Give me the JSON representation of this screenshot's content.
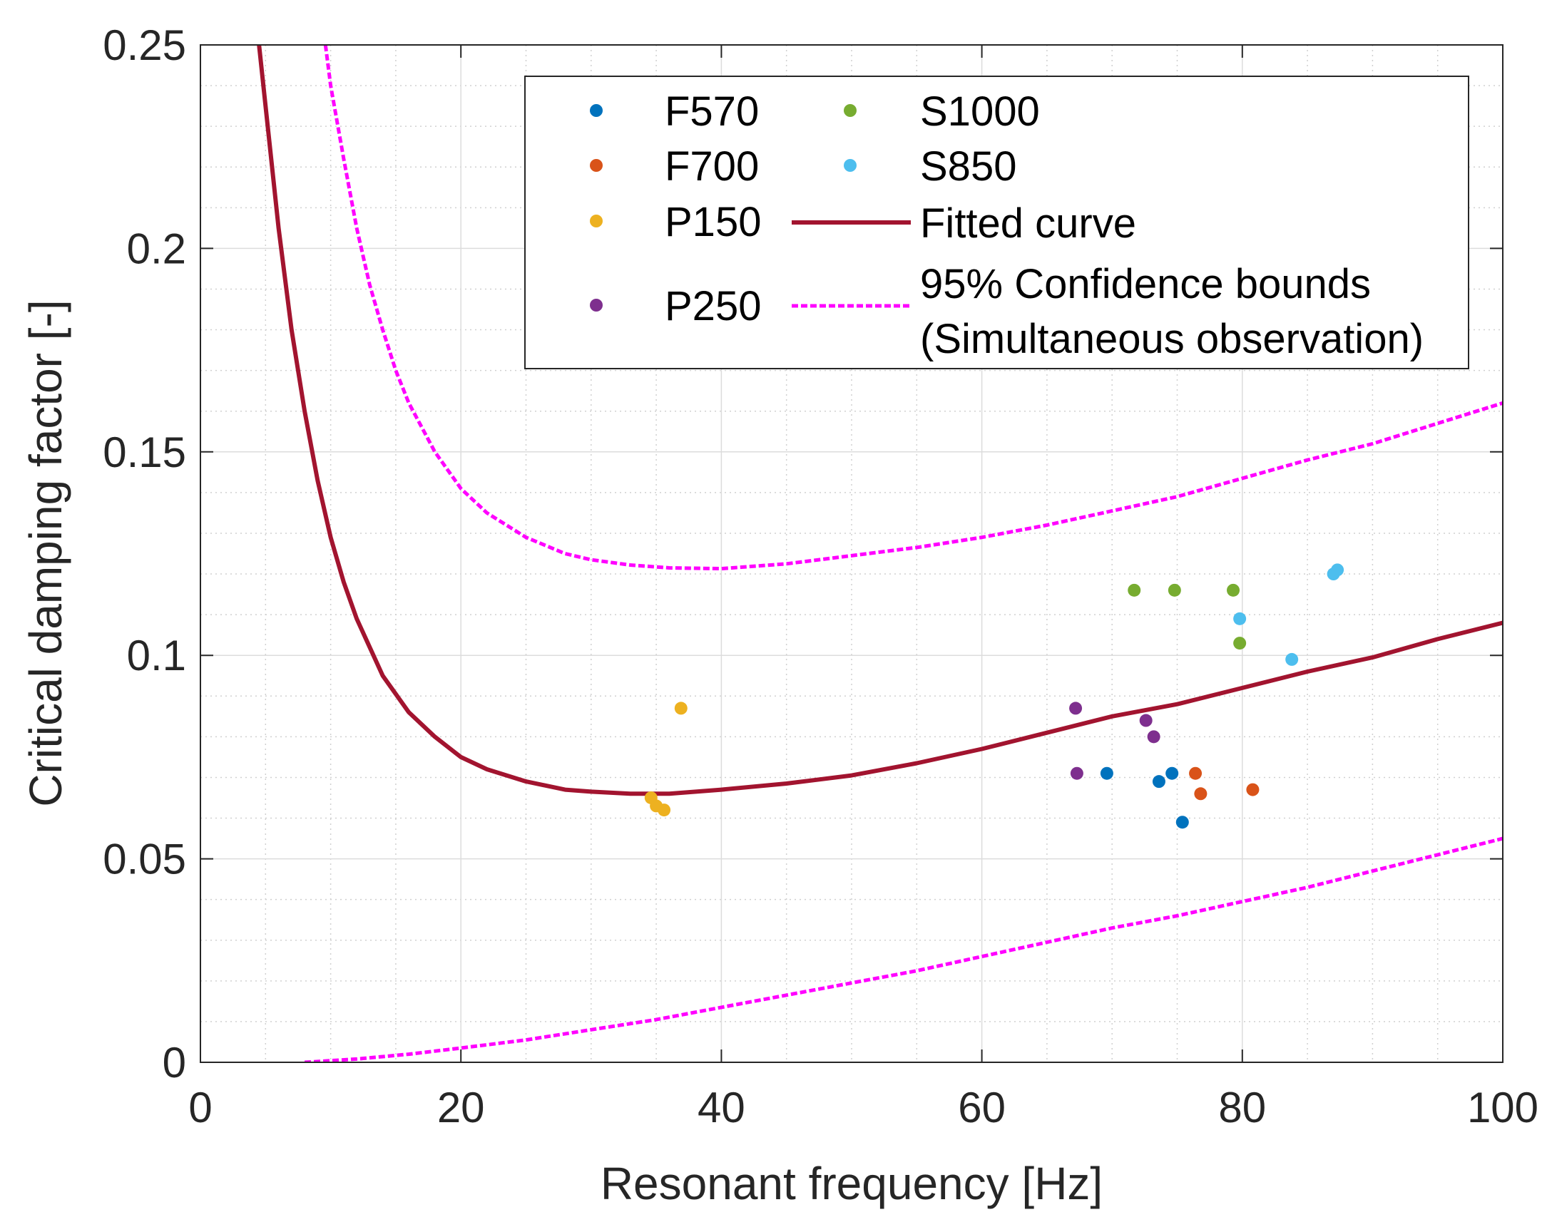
{
  "chart_data": {
    "type": "scatter",
    "xlabel": "Resonant frequency [Hz]",
    "ylabel": "Critical damping factor [-]",
    "xlim": [
      0,
      100
    ],
    "ylim": [
      0,
      0.25
    ],
    "x_ticks": [
      0,
      20,
      40,
      60,
      80,
      100
    ],
    "x_tick_labels": [
      "0",
      "20",
      "40",
      "60",
      "80",
      "100"
    ],
    "y_ticks": [
      0,
      0.05,
      0.1,
      0.15,
      0.2,
      0.25
    ],
    "y_tick_labels": [
      "0",
      "0.05",
      "0.1",
      "0.15",
      "0.2",
      "0.25"
    ],
    "grid": true,
    "minor_grid": true,
    "legend_position": "top-right",
    "series": [
      {
        "name": "F570",
        "color": "#0072BD",
        "points": [
          [
            69.6,
            0.071
          ],
          [
            73.6,
            0.069
          ],
          [
            74.6,
            0.071
          ],
          [
            75.4,
            0.059
          ]
        ]
      },
      {
        "name": "F700",
        "color": "#D95319",
        "points": [
          [
            76.4,
            0.071
          ],
          [
            76.8,
            0.066
          ],
          [
            80.8,
            0.067
          ]
        ]
      },
      {
        "name": "P150",
        "color": "#EDB120",
        "points": [
          [
            34.6,
            0.065
          ],
          [
            35.0,
            0.063
          ],
          [
            35.6,
            0.062
          ],
          [
            36.9,
            0.087
          ]
        ]
      },
      {
        "name": "P250",
        "color": "#7E2F8E",
        "points": [
          [
            67.2,
            0.087
          ],
          [
            67.3,
            0.071
          ],
          [
            72.6,
            0.084
          ],
          [
            73.2,
            0.08
          ]
        ]
      },
      {
        "name": "S1000",
        "color": "#77AC30",
        "points": [
          [
            71.7,
            0.116
          ],
          [
            74.8,
            0.116
          ],
          [
            79.3,
            0.116
          ],
          [
            79.8,
            0.103
          ]
        ]
      },
      {
        "name": "S850",
        "color": "#4DBEEE",
        "points": [
          [
            79.8,
            0.109
          ],
          [
            83.8,
            0.099
          ],
          [
            87.0,
            0.12
          ],
          [
            87.3,
            0.121
          ]
        ]
      }
    ],
    "lines": [
      {
        "name": "Fitted curve",
        "color": "#A2142F",
        "style": "solid",
        "points": [
          [
            4.5,
            0.25
          ],
          [
            5,
            0.235
          ],
          [
            6,
            0.205
          ],
          [
            7,
            0.18
          ],
          [
            8,
            0.16
          ],
          [
            9,
            0.143
          ],
          [
            10,
            0.129
          ],
          [
            11,
            0.118
          ],
          [
            12,
            0.109
          ],
          [
            14,
            0.095
          ],
          [
            16,
            0.086
          ],
          [
            18,
            0.08
          ],
          [
            20,
            0.075
          ],
          [
            22,
            0.072
          ],
          [
            25,
            0.069
          ],
          [
            28,
            0.067
          ],
          [
            30,
            0.0665
          ],
          [
            33,
            0.066
          ],
          [
            36,
            0.066
          ],
          [
            40,
            0.067
          ],
          [
            45,
            0.0685
          ],
          [
            50,
            0.0705
          ],
          [
            55,
            0.0735
          ],
          [
            60,
            0.077
          ],
          [
            65,
            0.081
          ],
          [
            70,
            0.085
          ],
          [
            75,
            0.088
          ],
          [
            80,
            0.092
          ],
          [
            85,
            0.096
          ],
          [
            90,
            0.0995
          ],
          [
            95,
            0.104
          ],
          [
            100,
            0.108
          ]
        ]
      },
      {
        "name": "95% Confidence bounds",
        "name_line2": "(Simultaneous observation)",
        "color": "#FF00FF",
        "style": "dashed",
        "points": [
          [
            9.6,
            0.25
          ],
          [
            10,
            0.24
          ],
          [
            11,
            0.222
          ],
          [
            12,
            0.205
          ],
          [
            13,
            0.191
          ],
          [
            14,
            0.18
          ],
          [
            15,
            0.17
          ],
          [
            16,
            0.162
          ],
          [
            18,
            0.15
          ],
          [
            20,
            0.141
          ],
          [
            22,
            0.135
          ],
          [
            25,
            0.129
          ],
          [
            28,
            0.125
          ],
          [
            30,
            0.1235
          ],
          [
            33,
            0.1222
          ],
          [
            36,
            0.1215
          ],
          [
            40,
            0.1213
          ],
          [
            45,
            0.1225
          ],
          [
            50,
            0.1245
          ],
          [
            55,
            0.1265
          ],
          [
            60,
            0.129
          ],
          [
            65,
            0.132
          ],
          [
            70,
            0.1355
          ],
          [
            75,
            0.139
          ],
          [
            80,
            0.1435
          ],
          [
            85,
            0.148
          ],
          [
            90,
            0.152
          ],
          [
            95,
            0.157
          ],
          [
            100,
            0.162
          ]
        ]
      },
      {
        "name": "95% Confidence bounds (lower)",
        "color": "#FF00FF",
        "style": "dashed",
        "points": [
          [
            8,
            0.0
          ],
          [
            12,
            0.0008
          ],
          [
            16,
            0.002
          ],
          [
            20,
            0.0035
          ],
          [
            25,
            0.0055
          ],
          [
            30,
            0.008
          ],
          [
            35,
            0.0105
          ],
          [
            40,
            0.0135
          ],
          [
            45,
            0.0165
          ],
          [
            50,
            0.0195
          ],
          [
            55,
            0.0225
          ],
          [
            60,
            0.026
          ],
          [
            65,
            0.0295
          ],
          [
            70,
            0.033
          ],
          [
            75,
            0.036
          ],
          [
            80,
            0.0395
          ],
          [
            85,
            0.043
          ],
          [
            90,
            0.047
          ],
          [
            95,
            0.051
          ],
          [
            100,
            0.055
          ]
        ]
      }
    ]
  }
}
